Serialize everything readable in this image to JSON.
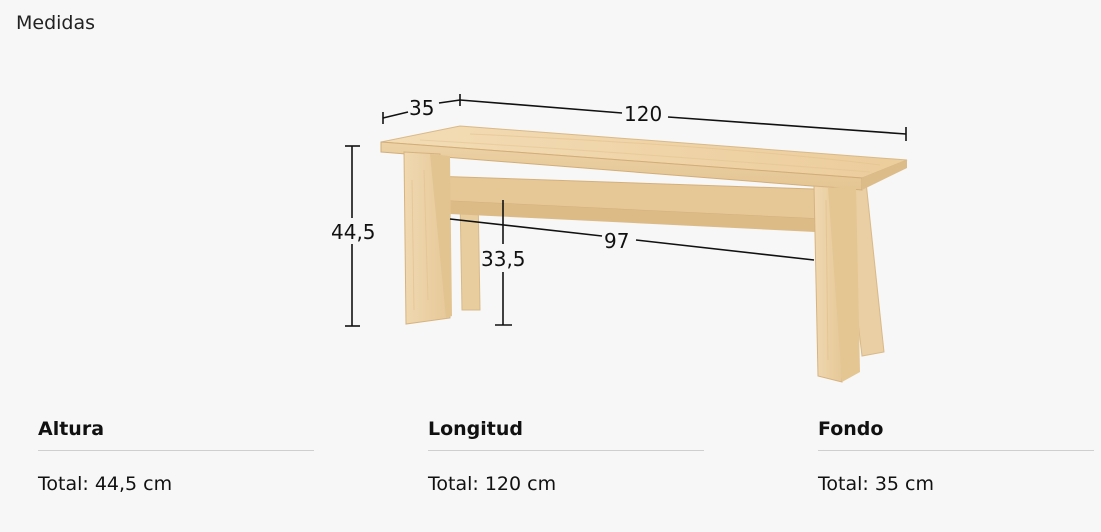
{
  "section_title": "Medidas",
  "dimension_labels": {
    "depth": "35",
    "length": "120",
    "height": "44,5",
    "inner_height": "33,5",
    "inner_length": "97"
  },
  "specs": [
    {
      "heading": "Altura",
      "value": "Total: 44,5 cm"
    },
    {
      "heading": "Longitud",
      "value": "Total: 120 cm"
    },
    {
      "heading": "Fondo",
      "value": "Total: 35 cm"
    }
  ]
}
